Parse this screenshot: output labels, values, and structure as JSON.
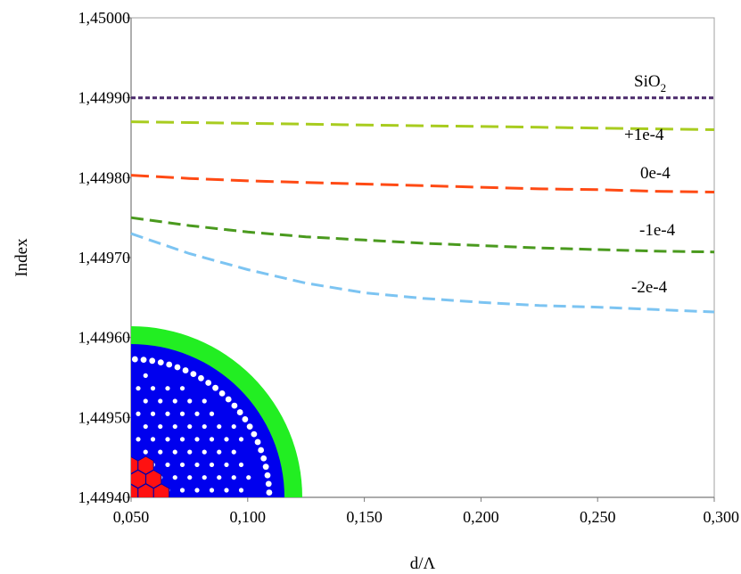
{
  "chart_data": {
    "type": "line",
    "xlabel": "d/Λ",
    "ylabel": "Index",
    "xlim": [
      0.05,
      0.3
    ],
    "ylim": [
      1.4494,
      1.45
    ],
    "x_ticks": [
      0.05,
      0.1,
      0.15,
      0.2,
      0.25,
      0.3
    ],
    "x_tick_labels": [
      "0,050",
      "0,100",
      "0,150",
      "0,200",
      "0,250",
      "0,300"
    ],
    "y_ticks": [
      1.4494,
      1.4495,
      1.4496,
      1.4497,
      1.4498,
      1.4499,
      1.45
    ],
    "y_tick_labels": [
      "1,44940",
      "1,44950",
      "1,44960",
      "1,44970",
      "1,44980",
      "1,44990",
      "1,45000"
    ],
    "grid": false,
    "series": [
      {
        "label": "SiO",
        "label_sub": "2",
        "color": "#4b2a6b",
        "dash": "dotted",
        "x": [
          0.05,
          0.1,
          0.15,
          0.2,
          0.25,
          0.3
        ],
        "y": [
          1.4499,
          1.4499,
          1.4499,
          1.4499,
          1.4499,
          1.4499
        ]
      },
      {
        "label": "+1e-4",
        "color": "#a8cc1f",
        "dash": "long",
        "x": [
          0.05,
          0.075,
          0.1,
          0.125,
          0.15,
          0.175,
          0.2,
          0.225,
          0.25,
          0.275,
          0.3
        ],
        "y": [
          1.44987,
          1.449869,
          1.449868,
          1.449867,
          1.449866,
          1.449865,
          1.449864,
          1.449863,
          1.449862,
          1.449861,
          1.44986
        ]
      },
      {
        "label": "0e-4",
        "color": "#ff4a14",
        "dash": "long",
        "x": [
          0.05,
          0.075,
          0.1,
          0.125,
          0.15,
          0.175,
          0.2,
          0.225,
          0.25,
          0.275,
          0.3
        ],
        "y": [
          1.449803,
          1.449799,
          1.449796,
          1.449794,
          1.449792,
          1.44979,
          1.449788,
          1.449786,
          1.449785,
          1.449783,
          1.449782
        ]
      },
      {
        "label": "-1e-4",
        "color": "#4a9a1e",
        "dash": "medium",
        "x": [
          0.05,
          0.075,
          0.1,
          0.125,
          0.15,
          0.175,
          0.2,
          0.225,
          0.25,
          0.275,
          0.3
        ],
        "y": [
          1.44975,
          1.44974,
          1.449732,
          1.449726,
          1.449722,
          1.449718,
          1.449715,
          1.449712,
          1.44971,
          1.449708,
          1.449707
        ]
      },
      {
        "label": "-2e-4",
        "color": "#7cc4f2",
        "dash": "medium",
        "x": [
          0.05,
          0.075,
          0.1,
          0.125,
          0.15,
          0.175,
          0.2,
          0.225,
          0.25,
          0.275,
          0.3
        ],
        "y": [
          1.44973,
          1.449705,
          1.449685,
          1.449668,
          1.449656,
          1.449649,
          1.449644,
          1.44964,
          1.449638,
          1.449635,
          1.449632
        ]
      }
    ],
    "inset": {
      "type": "fiber-cross-section-quadrant",
      "colors": {
        "outer_ring": "#22ee22",
        "cladding": "#0000ee",
        "holes": "#ffffff",
        "core": "#ff1111",
        "core_edge": "#0000aa"
      }
    }
  }
}
